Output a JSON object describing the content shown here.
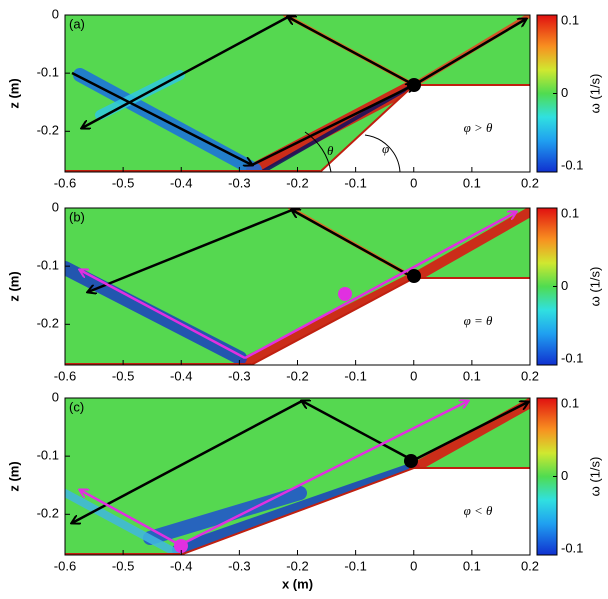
{
  "chart_data": [
    {
      "type": "contour",
      "panel_label": "(a)",
      "annotation": "φ > θ",
      "angle_labels": [
        "θ",
        "φ"
      ],
      "xlim": [
        -0.6,
        0.2
      ],
      "xticks": [
        -0.6,
        -0.5,
        -0.4,
        -0.3,
        -0.2,
        -0.1,
        0,
        0.1,
        0.2
      ],
      "ylim": [
        -0.27,
        0
      ],
      "yticks": [
        0,
        -0.1,
        -0.2
      ],
      "ylabel": "z (m)",
      "colorbar": {
        "label": "ω (1/s)",
        "lim": [
          -0.1,
          0.1
        ],
        "ticks": [
          0.1,
          0,
          -0.1
        ]
      }
    },
    {
      "type": "contour",
      "panel_label": "(b)",
      "annotation": "φ = θ",
      "xlim": [
        -0.6,
        0.2
      ],
      "xticks": [
        -0.6,
        -0.5,
        -0.4,
        -0.3,
        -0.2,
        -0.1,
        0,
        0.1,
        0.2
      ],
      "ylim": [
        -0.27,
        0
      ],
      "yticks": [
        0,
        -0.1,
        -0.2
      ],
      "ylabel": "z (m)",
      "colorbar": {
        "label": "ω (1/s)",
        "lim": [
          -0.1,
          0.1
        ],
        "ticks": [
          0.1,
          0,
          -0.1
        ]
      }
    },
    {
      "type": "contour",
      "panel_label": "(c)",
      "annotation": "φ < θ",
      "xlim": [
        -0.6,
        0.2
      ],
      "xticks": [
        -0.6,
        -0.5,
        -0.4,
        -0.3,
        -0.2,
        -0.1,
        0,
        0.1,
        0.2
      ],
      "ylim": [
        -0.27,
        0
      ],
      "yticks": [
        0,
        -0.1,
        -0.2
      ],
      "ylabel": "z (m)",
      "xlabel": "x (m)",
      "colorbar": {
        "label": "ω (1/s)",
        "lim": [
          -0.1,
          0.1
        ],
        "ticks": [
          0.1,
          0,
          -0.1
        ]
      }
    }
  ]
}
